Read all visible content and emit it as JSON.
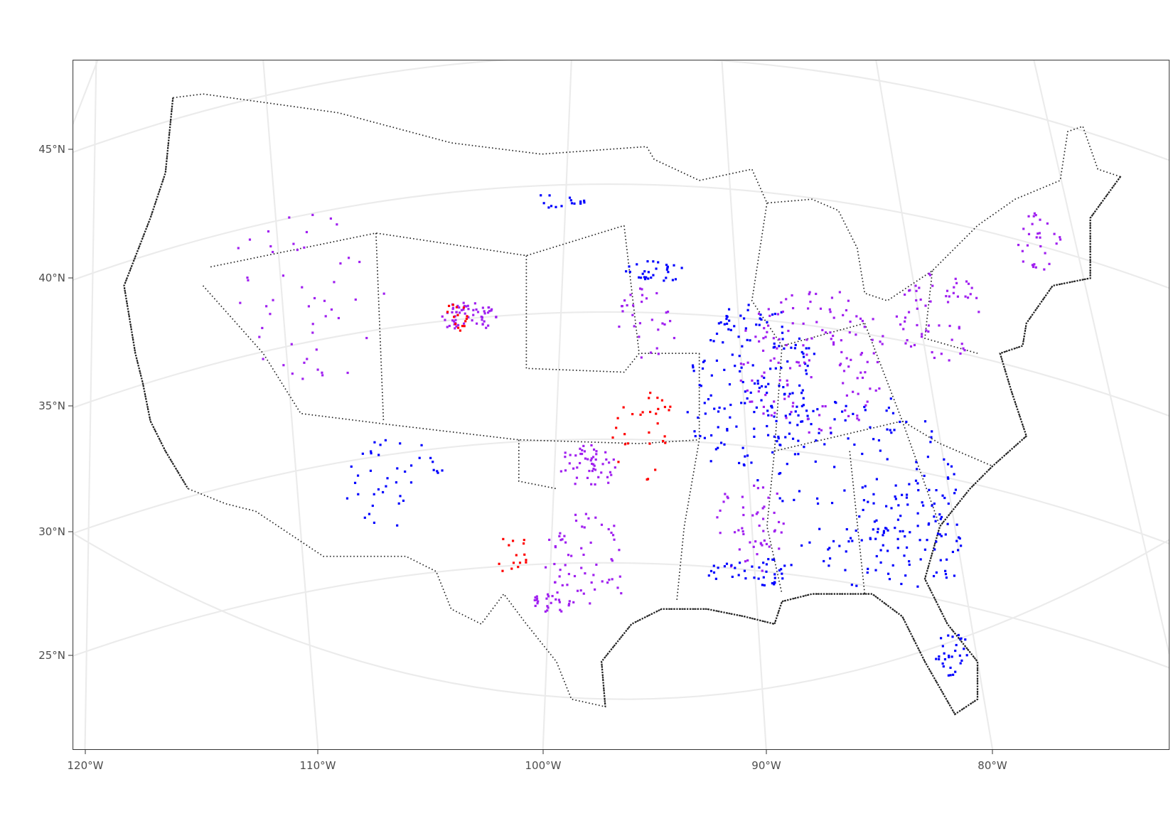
{
  "map": {
    "lat_labels": [
      "45°N",
      "40°N",
      "35°N",
      "30°N",
      "25°N"
    ],
    "lon_labels": [
      "120°W",
      "110°W",
      "100°W",
      "90°W",
      "80°W"
    ]
  }
}
